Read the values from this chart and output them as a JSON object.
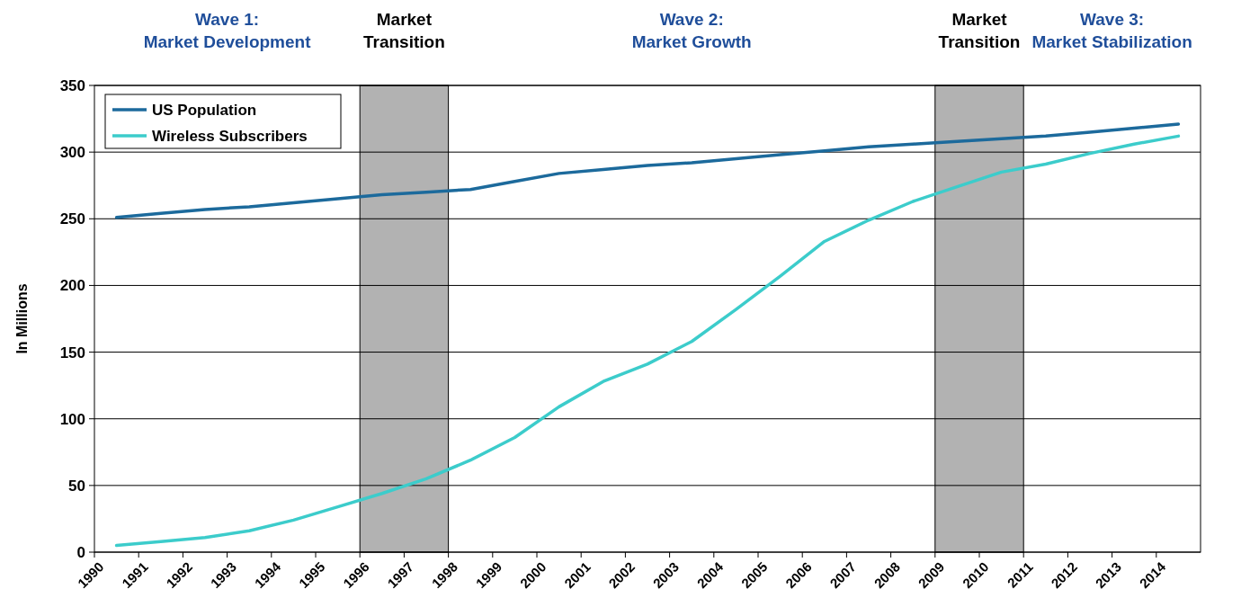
{
  "chart_data": {
    "type": "line",
    "ylabel": "In Millions",
    "x": [
      1990.5,
      1991.5,
      1992.5,
      1993.5,
      1994.5,
      1995.5,
      1996.5,
      1997.5,
      1998.5,
      1999.5,
      2000.5,
      2001.5,
      2002.5,
      2003.5,
      2004.5,
      2005.5,
      2006.5,
      2007.5,
      2008.5,
      2009.5,
      2010.5,
      2011.5,
      2012.5,
      2013.5,
      2014.5
    ],
    "series": [
      {
        "name": "US Population",
        "color": "#1c6a9c",
        "values": [
          251,
          254,
          257,
          259,
          262,
          265,
          268,
          270,
          272,
          278,
          284,
          287,
          290,
          292,
          295,
          298,
          301,
          304,
          306,
          308,
          310,
          312,
          315,
          318,
          321
        ]
      },
      {
        "name": "Wireless Subscribers",
        "color": "#3ccccb",
        "values": [
          5,
          8,
          11,
          16,
          24,
          34,
          44,
          55,
          69,
          86,
          109,
          128,
          141,
          158,
          182,
          207,
          233,
          249,
          263,
          274,
          285,
          291,
          299,
          306,
          312
        ]
      }
    ],
    "xlim": [
      1990,
      2015
    ],
    "xticks": [
      1990,
      1991,
      1992,
      1993,
      1994,
      1995,
      1996,
      1997,
      1998,
      1999,
      2000,
      2001,
      2002,
      2003,
      2004,
      2005,
      2006,
      2007,
      2008,
      2009,
      2010,
      2011,
      2012,
      2013,
      2014
    ],
    "ylim": [
      0,
      350
    ],
    "yticks": [
      0,
      50,
      100,
      150,
      200,
      250,
      300,
      350
    ],
    "grid": "y",
    "legend": "top left",
    "line_style": "solid",
    "marker": "none",
    "bands": [
      {
        "axis": "x",
        "from": 1996,
        "to": 1998,
        "label": "Market\nTransition",
        "color": "#b2b2b2"
      },
      {
        "axis": "x",
        "from": 2009,
        "to": 2011,
        "label": "Market\nTransition",
        "color": "#b2b2b2"
      }
    ],
    "annotations": [
      "Wave 1:\nMarket Development",
      "Wave 2:\nMarket Growth",
      "Wave 3:\nMarket Stabilization"
    ]
  }
}
